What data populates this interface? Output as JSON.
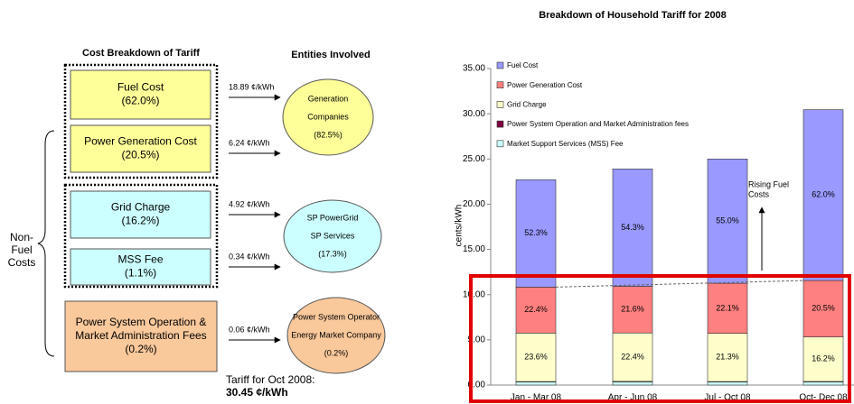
{
  "diagram": {
    "left_header": "Cost Breakdown of Tariff",
    "right_header": "Entities Involved",
    "cost_items": [
      {
        "lines": [
          "Fuel Cost",
          "(62.0%)"
        ],
        "rate": "18.89 ¢/kWh"
      },
      {
        "lines": [
          "Power Generation Cost",
          "(20.5%)"
        ],
        "rate": "6.24 ¢/kWh"
      },
      {
        "lines": [
          "Grid Charge",
          "(16.2%)"
        ],
        "rate": "4.92 ¢/kWh"
      },
      {
        "lines": [
          "MSS Fee",
          "(1.1%)"
        ],
        "rate": "0.34 ¢/kWh"
      },
      {
        "lines": [
          "Power System Operation &",
          "Market Administration Fees",
          "(0.2%)"
        ],
        "rate": "0.06 ¢/kWh"
      }
    ],
    "entities": [
      {
        "lines": [
          "Generation",
          "Companies",
          "(82.5%)"
        ]
      },
      {
        "lines": [
          "SP PowerGrid",
          "SP Services",
          "(17.3%)"
        ]
      },
      {
        "lines": [
          "Power System Operator",
          "Energy Market Company",
          "(0.2%)"
        ]
      }
    ],
    "non_fuel_label": [
      "Non-",
      "Fuel",
      "Costs"
    ],
    "tariff_note": [
      "Tariff for Oct 2008:",
      "30.45 ¢/kWh"
    ]
  },
  "chart_data": {
    "type": "stacked_bar",
    "title": "Breakdown of Household Tariff for 2008",
    "y_label": "cents/kWh",
    "categories": [
      "Jan - Mar 08",
      "Apr - Jun 08",
      "Jul - Oct 08",
      "Oct- Dec 08"
    ],
    "series": [
      {
        "name": "Fuel Cost",
        "color": "#9999ff",
        "values": [
          11.87,
          12.98,
          13.75,
          18.89
        ],
        "segment_labels": [
          "52.3%",
          "54.3%",
          "55.0%",
          "62.0%"
        ]
      },
      {
        "name": "Power Generation Cost",
        "color": "#ff8080",
        "values": [
          5.08,
          5.16,
          5.53,
          6.24
        ],
        "segment_labels": [
          "22.4%",
          "21.6%",
          "22.1%",
          "20.5%"
        ]
      },
      {
        "name": "Grid Charge",
        "color": "#ffffcc",
        "values": [
          5.36,
          5.35,
          5.33,
          4.92
        ],
        "segment_labels": [
          "23.6%",
          "22.4%",
          "21.3%",
          "16.2%"
        ]
      },
      {
        "name": "Power System Operation and Market Administration fees",
        "color": "#800040",
        "values": [
          0.06,
          0.06,
          0.06,
          0.06
        ]
      },
      {
        "name": "Market Support Services (MSS) Fee",
        "color": "#ccffff",
        "values": [
          0.33,
          0.35,
          0.33,
          0.34
        ]
      }
    ],
    "ylim": [
      0,
      35
    ],
    "yticks": [
      {
        "value": 0,
        "label": "0.00"
      },
      {
        "value": 5,
        "label": "5.00"
      },
      {
        "value": 10,
        "label": "10.00"
      },
      {
        "value": 15,
        "label": "15.00"
      },
      {
        "value": 20,
        "label": "20.00"
      },
      {
        "value": 25,
        "label": "25.00"
      },
      {
        "value": 30,
        "label": "30.00"
      },
      {
        "value": 35,
        "label": "35.00"
      }
    ],
    "annotation": [
      "Rising Fuel",
      "Costs"
    ]
  }
}
